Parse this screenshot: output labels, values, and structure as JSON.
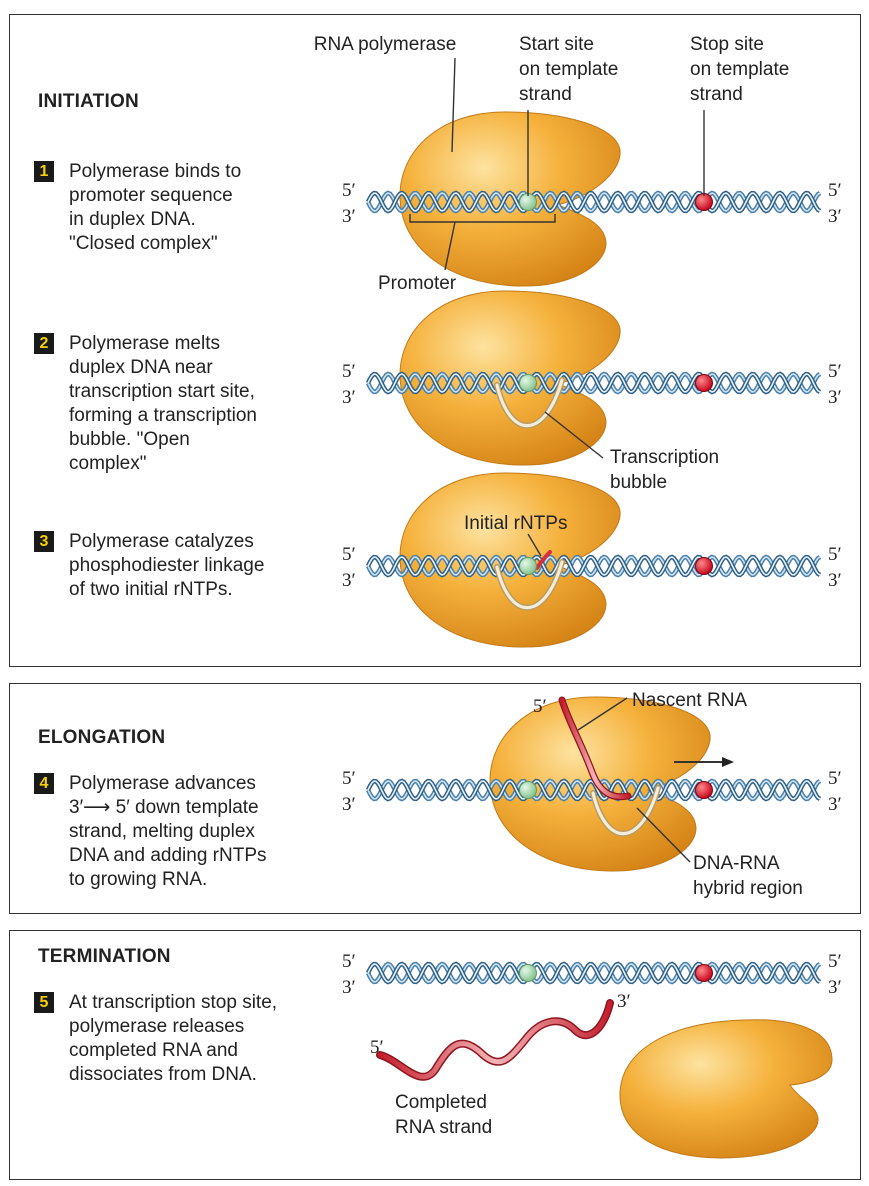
{
  "initiation": {
    "heading": "INITIATION",
    "labels": {
      "rna_polymerase": "RNA polymerase",
      "start_site": "Start site\non template\nstrand",
      "stop_site": "Stop site\non template\nstrand",
      "promoter": "Promoter",
      "transcription_bubble": "Transcription\nbubble",
      "initial_rntps": "Initial rNTPs"
    },
    "steps": [
      {
        "number": "1",
        "text": "Polymerase binds to\npromoter sequence\nin duplex DNA.\n\"Closed complex\""
      },
      {
        "number": "2",
        "text": "Polymerase melts\nduplex DNA near\ntranscription start site,\nforming a transcription\nbubble.  \"Open\ncomplex\""
      },
      {
        "number": "3",
        "text": "Polymerase catalyzes\nphosphodiester linkage\nof two initial rNTPs."
      }
    ]
  },
  "elongation": {
    "heading": "ELONGATION",
    "labels": {
      "nascent_rna": "Nascent RNA",
      "hybrid_region": "DNA-RNA\nhybrid region",
      "rna_5_end": "5′"
    },
    "steps": [
      {
        "number": "4",
        "text": "Polymerase advances\n3′⟶ 5′ down template\nstrand, melting duplex\nDNA and adding rNTPs\nto growing RNA."
      }
    ]
  },
  "termination": {
    "heading": "TERMINATION",
    "labels": {
      "completed_rna": "Completed\nRNA strand",
      "rna_5_end": "5′",
      "rna_3_end": "3′"
    },
    "steps": [
      {
        "number": "5",
        "text": "At transcription stop site,\npolymerase releases\ncompleted RNA and\ndissociates from DNA."
      }
    ]
  },
  "strand_ends": {
    "top": "5′",
    "bottom": "3′"
  },
  "colors": {
    "polymerase": "#f2a62b",
    "dna_strand": "#4a7fa8",
    "start_site": "#a8dcae",
    "stop_site": "#e0102a",
    "rna": "#d8303a"
  }
}
